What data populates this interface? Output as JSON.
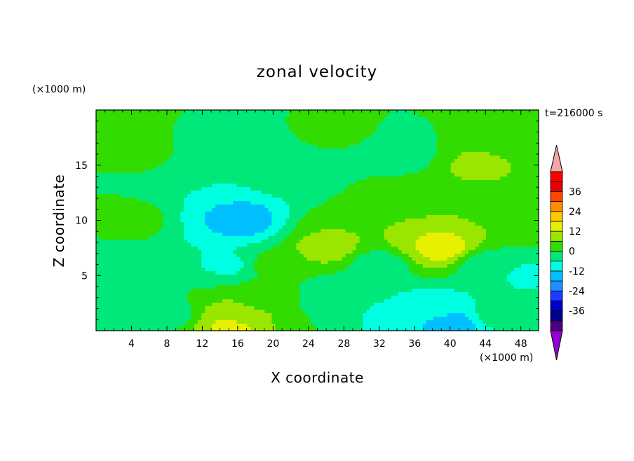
{
  "chart_data": {
    "type": "heatmap",
    "title": "zonal velocity",
    "xlabel": "X coordinate",
    "ylabel": "Z coordinate",
    "x_unit": "(×1000 m)",
    "y_unit": "(×1000 m)",
    "time_label": "t=216000 s",
    "xlim": [
      0,
      50
    ],
    "ylim": [
      0,
      20
    ],
    "x_ticks": [
      4,
      8,
      12,
      16,
      20,
      24,
      28,
      32,
      36,
      40,
      44,
      48
    ],
    "x_tick_labels": [
      "4",
      "8",
      "12",
      "16",
      "20",
      "24",
      "28",
      "32",
      "36",
      "40",
      "44",
      "48"
    ],
    "y_ticks": [
      5,
      10,
      15
    ],
    "y_tick_labels": [
      "5",
      "10",
      "15"
    ],
    "colorbar": {
      "levels": [
        -42,
        -36,
        -30,
        -24,
        -18,
        -12,
        -6,
        0,
        6,
        12,
        18,
        24,
        30,
        36,
        42
      ],
      "colors": [
        "#4b0082",
        "#00008b",
        "#0000cd",
        "#1e3cff",
        "#1e90ff",
        "#00bfff",
        "#00ffe0",
        "#00e87a",
        "#32dc00",
        "#9be600",
        "#e6f000",
        "#ffc800",
        "#ff8c00",
        "#ff4500",
        "#e60000",
        "#ff0000"
      ],
      "under_color": "#9400d3",
      "over_color": "#f4a6a6",
      "tick_values": [
        -36,
        -24,
        -12,
        0,
        12,
        24,
        36
      ],
      "tick_labels": [
        "-36",
        "-24",
        "-12",
        "0",
        "12",
        "24",
        "36"
      ]
    },
    "features": [
      {
        "x": 0,
        "z": 20,
        "value": 2
      },
      {
        "x": 5,
        "z": 16,
        "value": 1
      },
      {
        "x": 4,
        "z": 10,
        "value": 2
      },
      {
        "x": 2,
        "z": 5,
        "value": -5
      },
      {
        "x": 13,
        "z": 14,
        "value": -6
      },
      {
        "x": 16,
        "z": 10,
        "value": -12
      },
      {
        "x": 16.5,
        "z": 10,
        "value": -17
      },
      {
        "x": 15,
        "z": 6,
        "value": -7
      },
      {
        "x": 16,
        "z": 1,
        "value": 10
      },
      {
        "x": 15.5,
        "z": 0.6,
        "value": 14
      },
      {
        "x": 8,
        "z": 1.5,
        "value": -3
      },
      {
        "x": 19,
        "z": 3,
        "value": 4
      },
      {
        "x": 22,
        "z": 14,
        "value": -3
      },
      {
        "x": 27,
        "z": 9,
        "value": 6
      },
      {
        "x": 26,
        "z": 7.5,
        "value": 10
      },
      {
        "x": 32,
        "z": 6,
        "value": -4
      },
      {
        "x": 27,
        "z": 3,
        "value": -6
      },
      {
        "x": 27.5,
        "z": 18,
        "value": 1
      },
      {
        "x": 34,
        "z": 16,
        "value": -4
      },
      {
        "x": 38,
        "z": 8,
        "value": 12
      },
      {
        "x": 39,
        "z": 7.5,
        "value": 16
      },
      {
        "x": 43,
        "z": 15,
        "value": 7
      },
      {
        "x": 45,
        "z": 11,
        "value": 5
      },
      {
        "x": 47,
        "z": 18,
        "value": 1
      },
      {
        "x": 38,
        "z": 2,
        "value": -10
      },
      {
        "x": 40,
        "z": 0.5,
        "value": -16
      },
      {
        "x": 33,
        "z": 1,
        "value": -7
      },
      {
        "x": 46,
        "z": 1.5,
        "value": -2
      },
      {
        "x": 49,
        "z": 5,
        "value": -7
      },
      {
        "x": 44,
        "z": 6,
        "value": -4
      },
      {
        "x": 10,
        "z": 18,
        "value": 0
      },
      {
        "x": 20,
        "z": 6,
        "value": 2
      },
      {
        "x": 35,
        "z": 12,
        "value": 3
      },
      {
        "x": 50,
        "z": 10,
        "value": 3
      },
      {
        "x": 24,
        "z": 1,
        "value": 0
      }
    ]
  }
}
